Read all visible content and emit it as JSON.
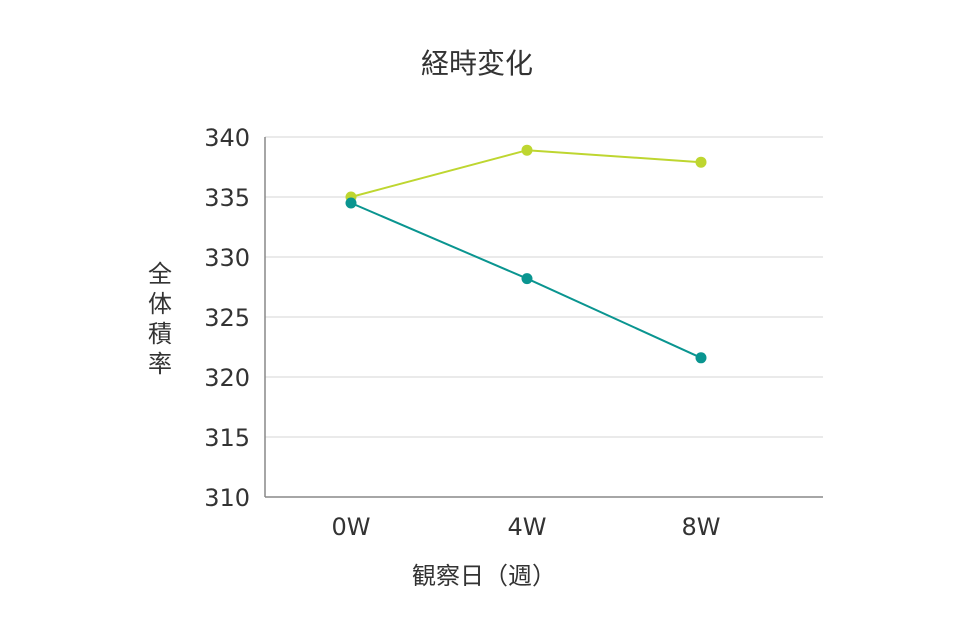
{
  "chart_data": {
    "type": "line",
    "title": "経時変化",
    "xlabel": "観察日（週）",
    "ylabel": "全体積率",
    "categories": [
      "0W",
      "4W",
      "8W"
    ],
    "ylim": [
      310,
      340
    ],
    "yticks": [
      310,
      315,
      320,
      325,
      330,
      335,
      340
    ],
    "grid": true,
    "series": [
      {
        "color": "#bed630",
        "values": [
          335.0,
          338.9,
          337.9
        ]
      },
      {
        "color": "#0a9590",
        "values": [
          334.5,
          328.2,
          321.6
        ]
      }
    ]
  }
}
